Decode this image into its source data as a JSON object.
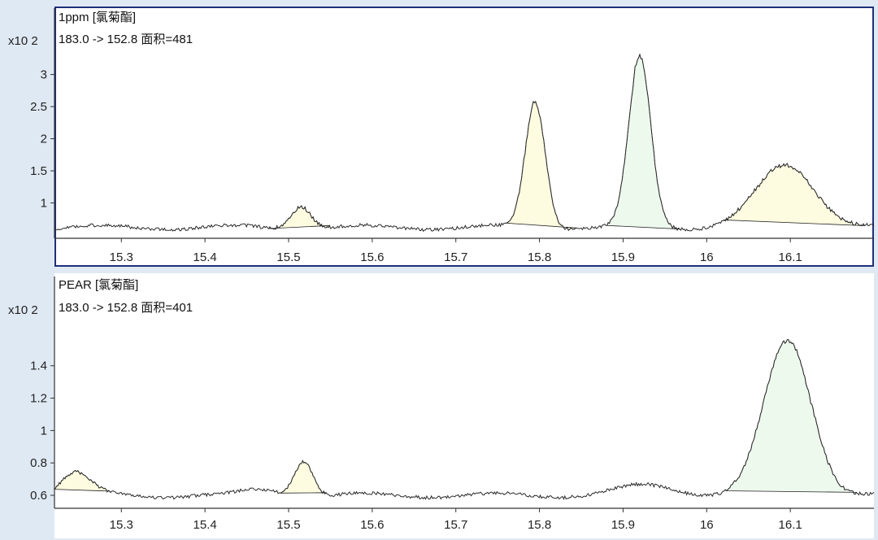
{
  "chart_data": [
    {
      "type": "line",
      "title": "1ppm [氯菊酯]",
      "subtitle": "183.0 -> 152.8 面积=481",
      "y_multiplier_label": "x10 2",
      "xlim": [
        15.22,
        16.2
      ],
      "ylim": [
        0.45,
        3.4
      ],
      "x_ticks": [
        15.3,
        15.4,
        15.5,
        15.6,
        15.7,
        15.8,
        15.9,
        16,
        16.1
      ],
      "x_tick_labels": [
        "15.3",
        "15.4",
        "15.5",
        "15.6",
        "15.7",
        "15.8",
        "15.9",
        "16",
        "16.1"
      ],
      "y_ticks": [
        1,
        1.5,
        2,
        2.5,
        3
      ],
      "y_tick_labels": [
        "1",
        "1.5",
        "2",
        "2.5",
        "3"
      ],
      "baseline_level": 0.62,
      "peaks": [
        {
          "center": 15.515,
          "height": 0.97,
          "width": 0.012,
          "x_start": 15.475,
          "x_end": 15.55,
          "fill": "#fdfbe0"
        },
        {
          "center": 15.795,
          "height": 2.58,
          "width": 0.012,
          "x_start": 15.76,
          "x_end": 15.845,
          "fill": "#fdfbe0"
        },
        {
          "center": 15.92,
          "height": 3.27,
          "width": 0.013,
          "x_start": 15.88,
          "x_end": 15.968,
          "fill": "#eef9ee"
        },
        {
          "center": 16.095,
          "height": 1.58,
          "width": 0.035,
          "x_start": 16.02,
          "x_end": 16.19,
          "fill": "#fdfbe0"
        }
      ]
    },
    {
      "type": "line",
      "title": "PEAR [氯菊酯]",
      "subtitle": "183.0 -> 152.8 面积=401",
      "y_multiplier_label": "x10 2",
      "xlim": [
        15.22,
        16.2
      ],
      "ylim": [
        0.52,
        1.7
      ],
      "x_ticks": [
        15.3,
        15.4,
        15.5,
        15.6,
        15.7,
        15.8,
        15.9,
        16,
        16.1
      ],
      "x_tick_labels": [
        "15.3",
        "15.4",
        "15.5",
        "15.6",
        "15.7",
        "15.8",
        "15.9",
        "16",
        "16.1"
      ],
      "y_ticks": [
        0.6,
        0.8,
        1,
        1.2,
        1.4
      ],
      "y_tick_labels": [
        "0.6",
        "0.8",
        "1",
        "1.2",
        "1.4"
      ],
      "baseline_level": 0.6,
      "peaks": [
        {
          "center": 15.245,
          "height": 0.74,
          "width": 0.018,
          "x_start": 15.22,
          "x_end": 15.287,
          "fill": "#fdfbe0"
        },
        {
          "center": 15.518,
          "height": 0.82,
          "width": 0.011,
          "x_start": 15.49,
          "x_end": 15.545,
          "fill": "#fdfbe0"
        },
        {
          "center": 16.097,
          "height": 1.56,
          "width": 0.028,
          "x_start": 16.023,
          "x_end": 16.18,
          "fill": "#eef9ee"
        }
      ]
    }
  ]
}
